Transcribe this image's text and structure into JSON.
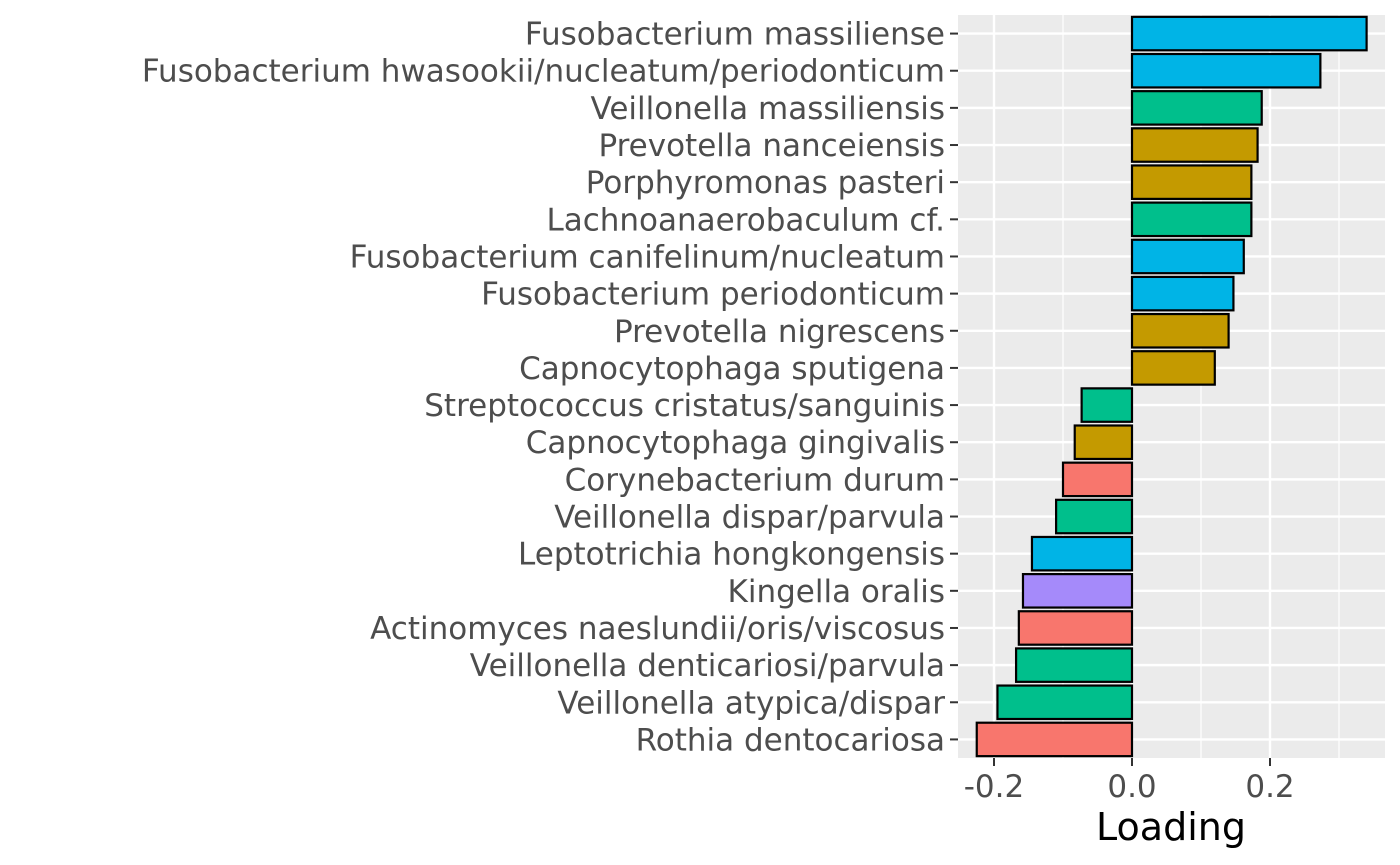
{
  "chart_data": {
    "type": "bar",
    "orientation": "horizontal",
    "title": "",
    "xlabel": "Loading",
    "ylabel": "",
    "xlim": [
      -0.25,
      0.365
    ],
    "x_ticks": [
      -0.2,
      0.0,
      0.2
    ],
    "x_tick_labels": [
      "-0.2",
      "0.0",
      "0.2"
    ],
    "grid": true,
    "legend": "none",
    "panel_background": "#ebebeb",
    "bar_outline": "#000000",
    "categories": [
      "Fusobacterium massiliense",
      "Fusobacterium hwasookii/nucleatum/periodonticum",
      "Veillonella massiliensis",
      "Prevotella nanceiensis",
      "Porphyromonas pasteri",
      "Lachnoanaerobaculum cf.",
      "Fusobacterium canifelinum/nucleatum",
      "Fusobacterium periodonticum",
      "Prevotella nigrescens",
      "Capnocytophaga sputigena",
      "Streptococcus cristatus/sanguinis",
      "Capnocytophaga gingivalis",
      "Corynebacterium durum",
      "Veillonella dispar/parvula",
      "Leptotrichia hongkongensis",
      "Kingella oralis",
      "Actinomyces naeslundii/oris/viscosus",
      "Veillonella denticariosi/parvula",
      "Veillonella atypica/dispar",
      "Rothia dentocariosa"
    ],
    "values": [
      0.34,
      0.273,
      0.188,
      0.182,
      0.173,
      0.173,
      0.162,
      0.147,
      0.14,
      0.12,
      -0.073,
      -0.083,
      -0.1,
      -0.11,
      -0.145,
      -0.158,
      -0.164,
      -0.168,
      -0.195,
      -0.225
    ],
    "colors": [
      "#00b4e6",
      "#00b4e6",
      "#00bf8c",
      "#c49a00",
      "#c49a00",
      "#00bf8c",
      "#00b4e6",
      "#00b4e6",
      "#c49a00",
      "#c49a00",
      "#00bf8c",
      "#c49a00",
      "#f8766d",
      "#00bf8c",
      "#00b4e6",
      "#a58afa",
      "#f8766d",
      "#00bf8c",
      "#00bf8c",
      "#f8766d"
    ]
  }
}
